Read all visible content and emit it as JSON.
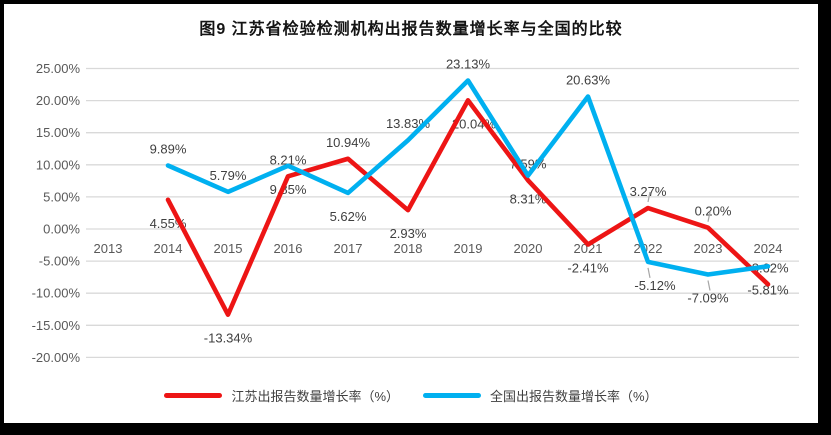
{
  "chart_data": {
    "type": "line",
    "title": "图9  江苏省检验检测机构出报告数量增长率与全国的比较",
    "categories": [
      "2013",
      "2014",
      "2015",
      "2016",
      "2017",
      "2018",
      "2019",
      "2020",
      "2021",
      "2022",
      "2023",
      "2024"
    ],
    "series": [
      {
        "name": "江苏出报告数量增长率（%）",
        "color": "#ed1515",
        "values": [
          null,
          4.55,
          -13.34,
          8.21,
          10.94,
          2.93,
          20.04,
          7.59,
          -2.41,
          3.27,
          0.2,
          -8.62
        ],
        "labels": [
          "",
          "4.55%",
          "-13.34%",
          "8.21%",
          "10.94%",
          "2.93%",
          "20.04%",
          "7.59%",
          "-2.41%",
          "3.27%",
          "0.20%",
          "-8.62%"
        ],
        "label_side": [
          null,
          "b",
          "b",
          "a",
          "a",
          "b",
          "b",
          "a",
          "b",
          "a",
          "a",
          "a"
        ],
        "label_dx": [
          0,
          0,
          0,
          0,
          0,
          0,
          6,
          0,
          0,
          0,
          5,
          0
        ]
      },
      {
        "name": "全国出报告数量增长率（%）",
        "color": "#00b0f0",
        "values": [
          null,
          9.89,
          5.79,
          9.85,
          5.62,
          13.83,
          23.13,
          8.31,
          20.63,
          -5.12,
          -7.09,
          -5.81
        ],
        "labels": [
          "",
          "9.89%",
          "5.79%",
          "9.85%",
          "5.62%",
          "13.83%",
          "23.13%",
          "8.31%",
          "20.63%",
          "-5.12%",
          "-7.09%",
          "-5.81%"
        ],
        "label_side": [
          null,
          "a",
          "a",
          "b",
          "b",
          "a",
          "a",
          "b",
          "a",
          "b",
          "b",
          "b"
        ],
        "label_dx": [
          0,
          0,
          0,
          0,
          0,
          0,
          0,
          0,
          0,
          7,
          0,
          0
        ]
      }
    ],
    "y_axis": {
      "min": -20,
      "max": 25,
      "step": 5,
      "tick_labels": [
        "25.00%",
        "20.00%",
        "15.00%",
        "10.00%",
        "5.00%",
        "0.00%",
        "-5.00%",
        "-10.00%",
        "-15.00%",
        "-20.00%"
      ]
    },
    "grid": true,
    "legend_position": "bottom",
    "leader_points": [
      [
        0,
        9
      ],
      [
        0,
        10
      ],
      [
        1,
        9
      ],
      [
        1,
        10
      ]
    ],
    "colors": {
      "gridline": "#d9d9d9",
      "axis_text": "#595959",
      "data_label_text": "#3f3f3f",
      "leader_line": "#a6a6a6"
    }
  }
}
